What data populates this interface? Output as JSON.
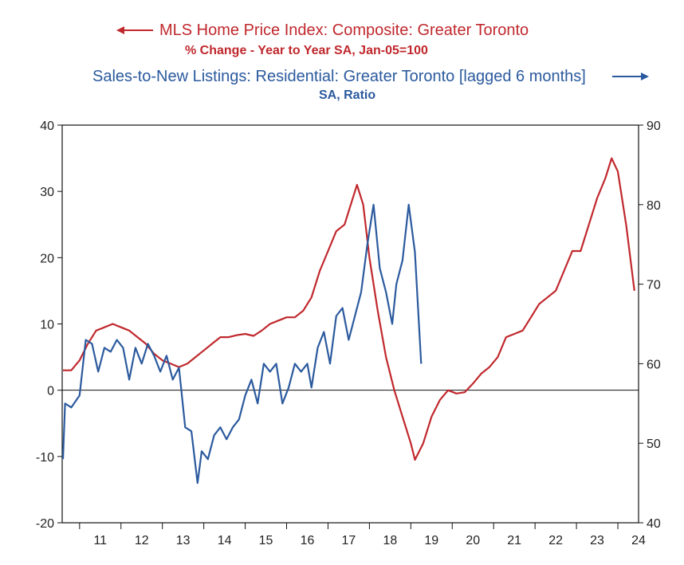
{
  "chart_data": {
    "type": "line",
    "legend": {
      "placement": "top",
      "red": {
        "title": "MLS Home Price Index: Composite: Greater Toronto",
        "subtitle": "% Change - Year to Year   SA, Jan-05=100",
        "arrow": "left"
      },
      "blue": {
        "title": "Sales-to-New Listings: Residential: Greater Toronto [lagged 6 months]",
        "subtitle": "SA, Ratio",
        "arrow": "right"
      }
    },
    "x_axis": {
      "tick_labels": [
        "11",
        "12",
        "13",
        "14",
        "15",
        "16",
        "17",
        "18",
        "19",
        "20",
        "21",
        "22",
        "23",
        "24"
      ],
      "range": [
        2010.58,
        2024.5
      ]
    },
    "y_left": {
      "range": [
        -20,
        40
      ],
      "ticks": [
        "40",
        "30",
        "20",
        "10",
        "0",
        "-10",
        "-20"
      ],
      "zero_line": true
    },
    "y_right": {
      "range": [
        40,
        90
      ],
      "ticks": [
        "90",
        "80",
        "70",
        "60",
        "50",
        "40"
      ]
    },
    "grid": false,
    "series": [
      {
        "color": "#c0282d",
        "axis": "left",
        "points": [
          [
            2010.6,
            3
          ],
          [
            2010.8,
            3
          ],
          [
            2011.0,
            4.5
          ],
          [
            2011.2,
            7
          ],
          [
            2011.4,
            9
          ],
          [
            2011.6,
            9.5
          ],
          [
            2011.8,
            10
          ],
          [
            2012.0,
            9.5
          ],
          [
            2012.2,
            9
          ],
          [
            2012.4,
            8
          ],
          [
            2012.6,
            7
          ],
          [
            2012.8,
            5.5
          ],
          [
            2013.0,
            4.5
          ],
          [
            2013.2,
            4
          ],
          [
            2013.4,
            3.5
          ],
          [
            2013.6,
            4
          ],
          [
            2013.8,
            5
          ],
          [
            2014.0,
            6
          ],
          [
            2014.2,
            7
          ],
          [
            2014.4,
            8
          ],
          [
            2014.6,
            8
          ],
          [
            2014.8,
            8.3
          ],
          [
            2015.0,
            8.5
          ],
          [
            2015.2,
            8.2
          ],
          [
            2015.4,
            9
          ],
          [
            2015.6,
            10
          ],
          [
            2015.8,
            10.5
          ],
          [
            2016.0,
            11
          ],
          [
            2016.2,
            11
          ],
          [
            2016.4,
            12
          ],
          [
            2016.6,
            14
          ],
          [
            2016.8,
            18
          ],
          [
            2017.0,
            21
          ],
          [
            2017.2,
            24
          ],
          [
            2017.4,
            25
          ],
          [
            2017.55,
            28
          ],
          [
            2017.7,
            31
          ],
          [
            2017.85,
            28
          ],
          [
            2018.0,
            20
          ],
          [
            2018.2,
            12
          ],
          [
            2018.4,
            5
          ],
          [
            2018.6,
            0
          ],
          [
            2018.8,
            -4
          ],
          [
            2019.0,
            -8
          ],
          [
            2019.1,
            -10.5
          ],
          [
            2019.3,
            -8
          ],
          [
            2019.5,
            -4
          ],
          [
            2019.7,
            -1.5
          ],
          [
            2019.9,
            0
          ],
          [
            2020.1,
            -0.5
          ],
          [
            2020.3,
            -0.3
          ],
          [
            2020.5,
            1
          ],
          [
            2020.7,
            2.5
          ],
          [
            2020.9,
            3.5
          ],
          [
            2021.1,
            5
          ],
          [
            2021.3,
            8
          ],
          [
            2021.5,
            8.5
          ],
          [
            2021.7,
            9
          ],
          [
            2021.9,
            11
          ],
          [
            2022.1,
            13
          ],
          [
            2022.3,
            14
          ],
          [
            2022.5,
            15
          ],
          [
            2022.7,
            18
          ],
          [
            2022.9,
            21
          ],
          [
            2023.1,
            21
          ],
          [
            2023.3,
            25
          ],
          [
            2023.5,
            29
          ],
          [
            2023.7,
            32
          ],
          [
            2023.85,
            35
          ],
          [
            2024.0,
            33
          ],
          [
            2024.2,
            25
          ],
          [
            2024.4,
            15
          ]
        ]
      },
      {
        "color": "#2b5a9e",
        "axis": "right",
        "points": [
          [
            2010.6,
            48
          ],
          [
            2010.65,
            55
          ],
          [
            2010.8,
            54.5
          ],
          [
            2011.0,
            56
          ],
          [
            2011.15,
            63
          ],
          [
            2011.3,
            62.5
          ],
          [
            2011.45,
            59
          ],
          [
            2011.6,
            62
          ],
          [
            2011.75,
            61.5
          ],
          [
            2011.9,
            63
          ],
          [
            2012.05,
            62
          ],
          [
            2012.2,
            58
          ],
          [
            2012.35,
            62
          ],
          [
            2012.5,
            60
          ],
          [
            2012.65,
            62.5
          ],
          [
            2012.8,
            61
          ],
          [
            2012.95,
            59
          ],
          [
            2013.1,
            61
          ],
          [
            2013.25,
            58
          ],
          [
            2013.4,
            59.5
          ],
          [
            2013.55,
            52
          ],
          [
            2013.7,
            51.5
          ],
          [
            2013.85,
            45
          ],
          [
            2013.95,
            49
          ],
          [
            2014.1,
            48
          ],
          [
            2014.25,
            51
          ],
          [
            2014.4,
            52
          ],
          [
            2014.55,
            50.5
          ],
          [
            2014.7,
            52
          ],
          [
            2014.85,
            53
          ],
          [
            2015.0,
            56
          ],
          [
            2015.15,
            58
          ],
          [
            2015.3,
            55
          ],
          [
            2015.45,
            60
          ],
          [
            2015.6,
            59
          ],
          [
            2015.75,
            60
          ],
          [
            2015.9,
            55
          ],
          [
            2016.05,
            57
          ],
          [
            2016.2,
            60
          ],
          [
            2016.35,
            59
          ],
          [
            2016.5,
            60
          ],
          [
            2016.6,
            57
          ],
          [
            2016.75,
            62
          ],
          [
            2016.9,
            64
          ],
          [
            2017.05,
            60
          ],
          [
            2017.2,
            66
          ],
          [
            2017.35,
            67
          ],
          [
            2017.5,
            63
          ],
          [
            2017.65,
            66
          ],
          [
            2017.8,
            69
          ],
          [
            2017.95,
            75
          ],
          [
            2018.1,
            80
          ],
          [
            2018.25,
            72
          ],
          [
            2018.4,
            69
          ],
          [
            2018.55,
            65
          ],
          [
            2018.65,
            70
          ],
          [
            2018.8,
            73
          ],
          [
            2018.95,
            80
          ],
          [
            2019.1,
            74
          ],
          [
            2019.25,
            60
          ]
        ]
      }
    ]
  }
}
